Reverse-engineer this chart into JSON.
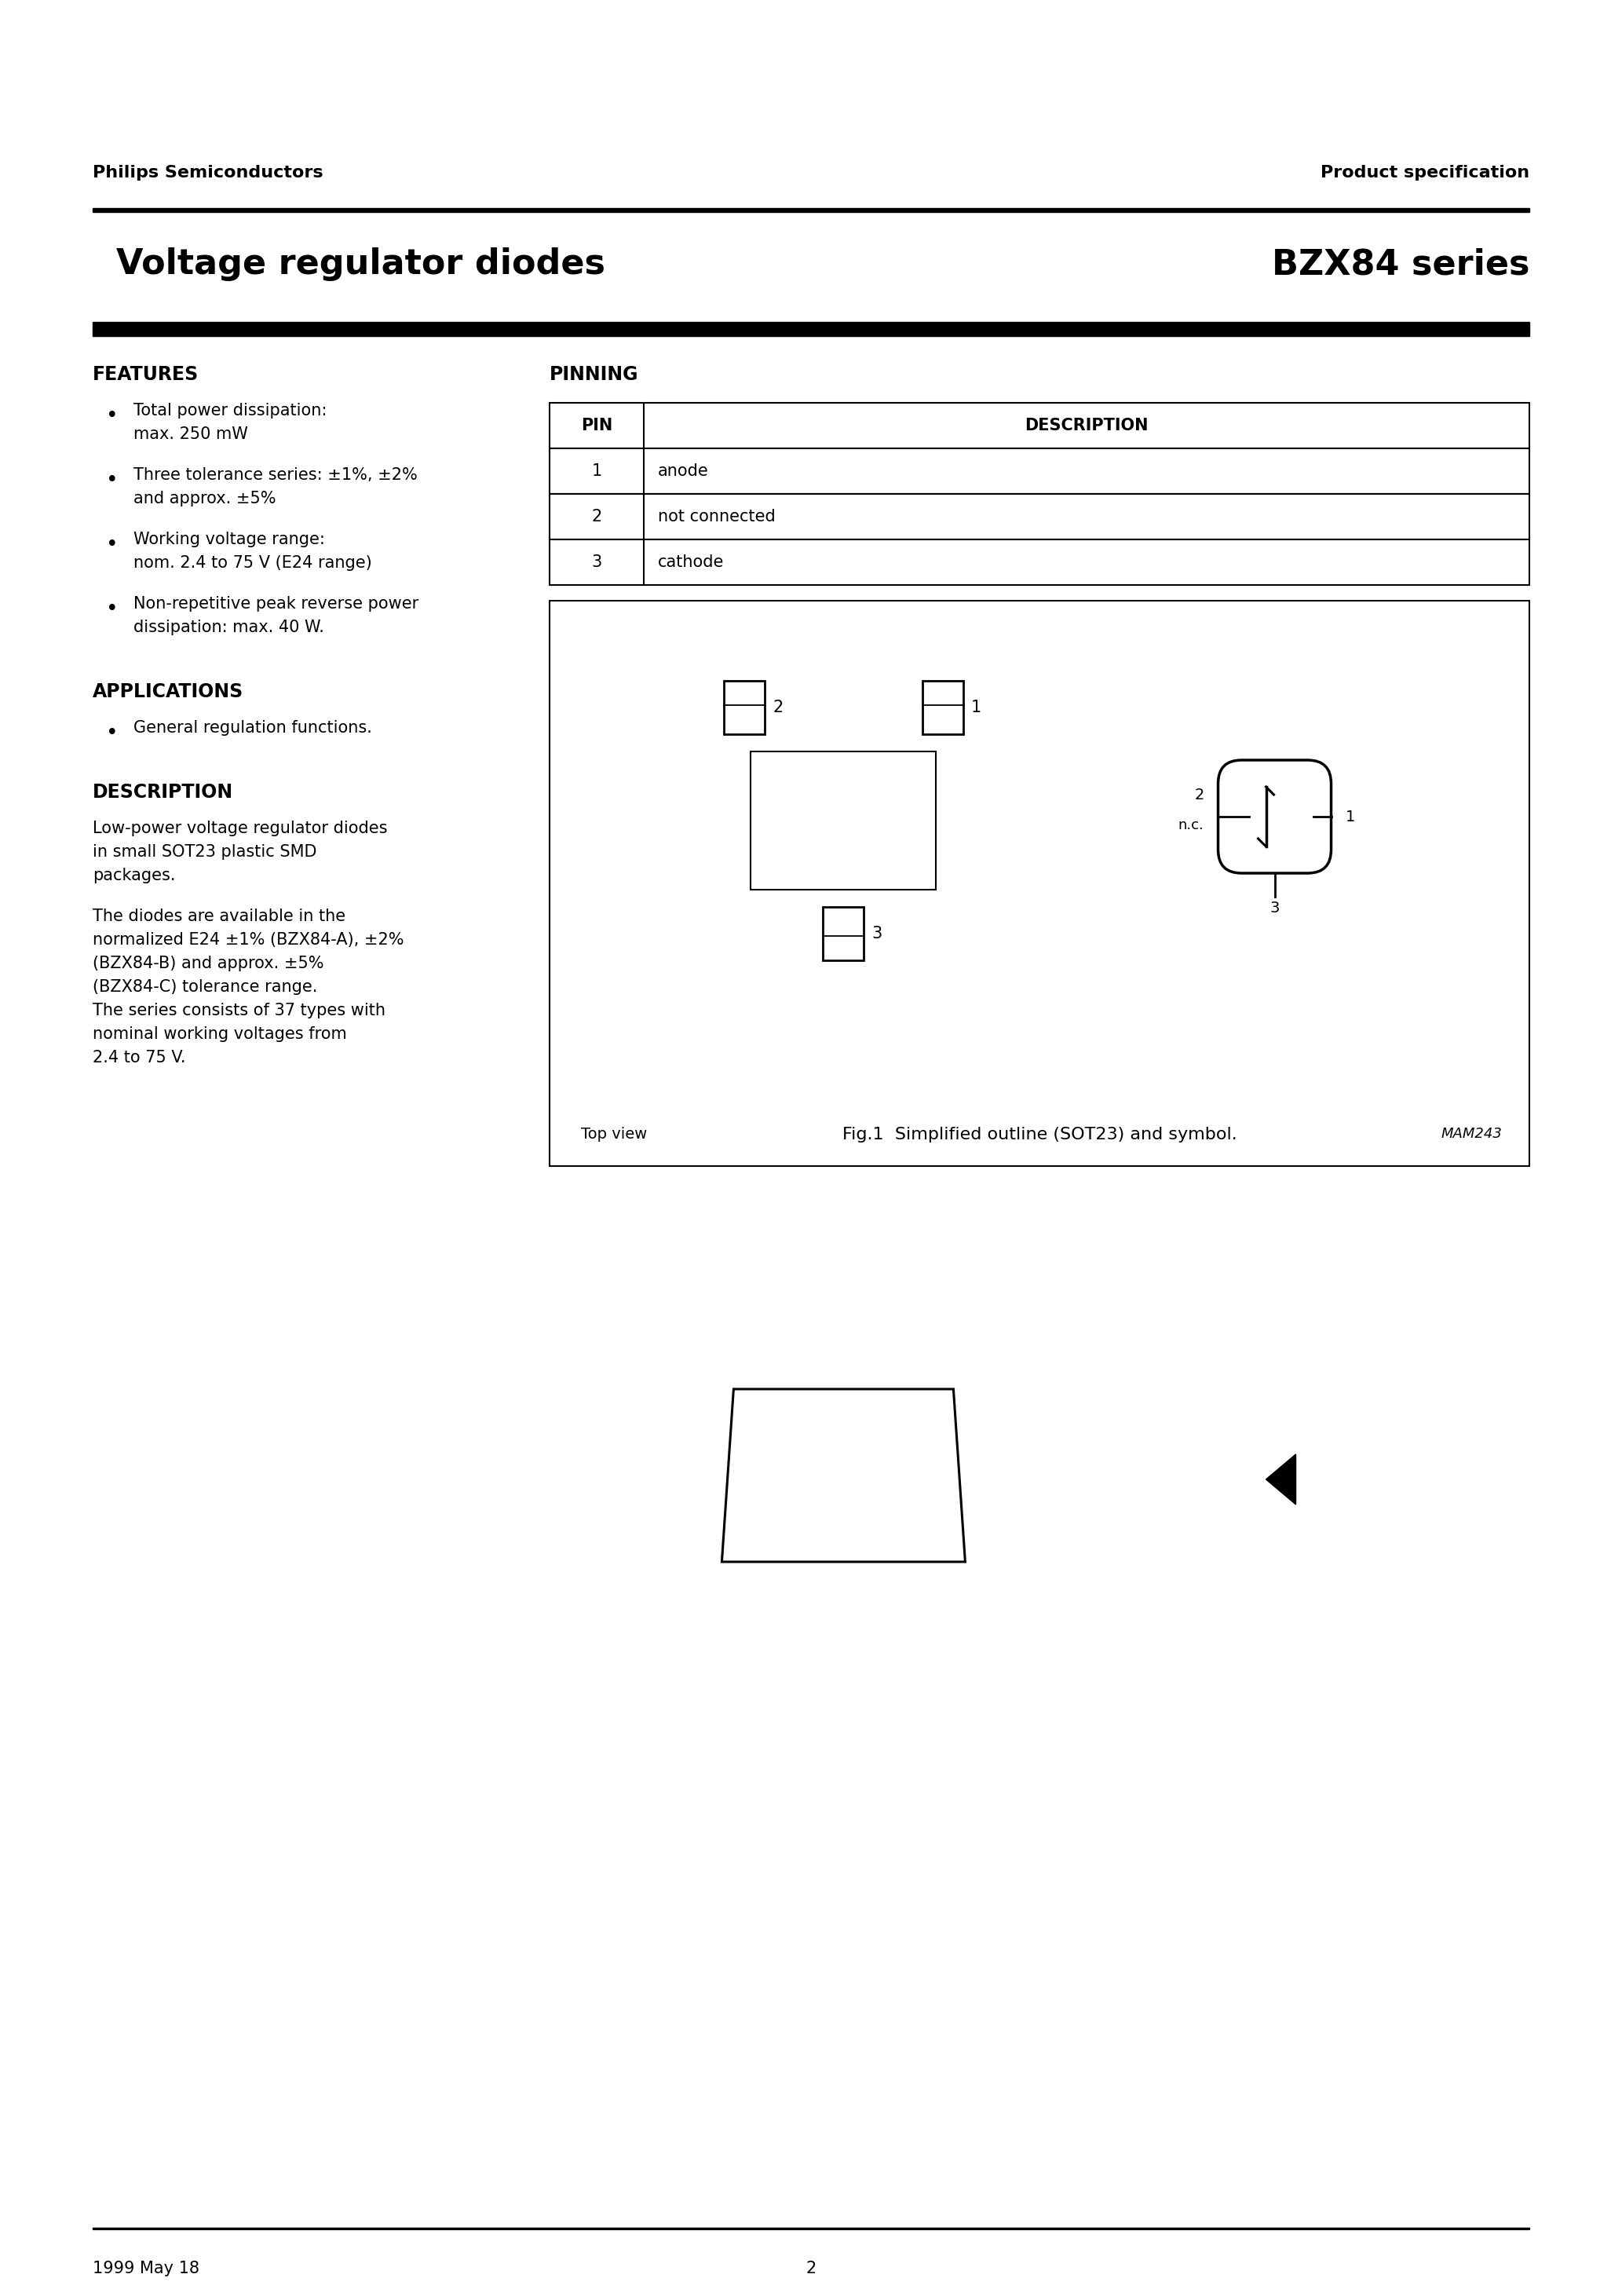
{
  "page_title_left": "Voltage regulator diodes",
  "page_title_right": "BZX84 series",
  "header_left": "Philips Semiconductors",
  "header_right": "Product specification",
  "footer_left": "1999 May 18",
  "footer_center": "2",
  "features_title": "FEATURES",
  "features_bullets": [
    "Total power dissipation:\nmax. 250 mW",
    "Three tolerance series: ±1%, ±2%\nand approx. ±5%",
    "Working voltage range:\nnom. 2.4 to 75 V (E24 range)",
    "Non-repetitive peak reverse power\ndissipation: max. 40 W."
  ],
  "applications_title": "APPLICATIONS",
  "applications_bullets": [
    "General regulation functions."
  ],
  "description_title": "DESCRIPTION",
  "description_text1": "Low-power voltage regulator diodes\nin small SOT23 plastic SMD\npackages.",
  "description_text2": "The diodes are available in the\nnormalized E24 ±1% (BZX84-A), ±2%\n(BZX84-B) and approx. ±5%\n(BZX84-C) tolerance range.\nThe series consists of 37 types with\nnominal working voltages from\n2.4 to 75 V.",
  "pinning_title": "PINNING",
  "pin_headers": [
    "PIN",
    "DESCRIPTION"
  ],
  "pin_rows": [
    [
      "1",
      "anode"
    ],
    [
      "2",
      "not connected"
    ],
    [
      "3",
      "cathode"
    ]
  ],
  "fig_caption": "Fig.1  Simplified outline (SOT23) and symbol.",
  "mam_label": "MAM243",
  "top_view_label": "Top view",
  "bg_color": "#ffffff",
  "text_color": "#000000",
  "header_line_color": "#000000",
  "title_bar_color": "#000000"
}
